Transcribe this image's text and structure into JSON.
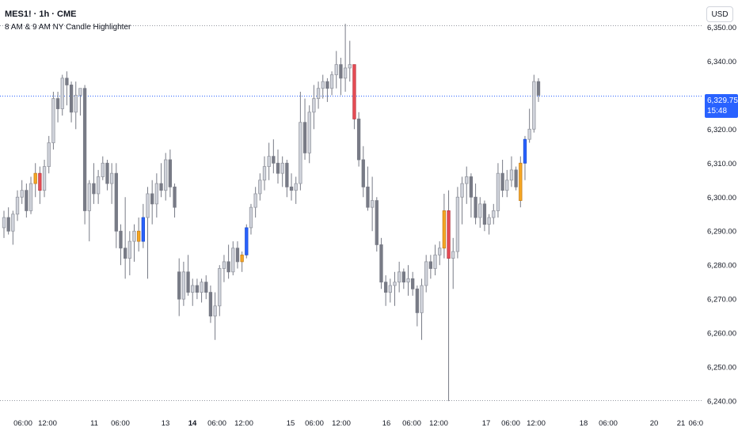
{
  "header": {
    "symbol": "MES1! · 1h · CME",
    "indicator": "8 AM & 9 AM NY Candle Highlighter",
    "currency_button": "USD"
  },
  "last_price": {
    "value": "6,329.75",
    "countdown": "15:48"
  },
  "price_axis": {
    "labels": [
      "6,350.00",
      "6,340.00",
      "6,320.00",
      "6,310.00",
      "6,300.00",
      "6,290.00",
      "6,280.00",
      "6,270.00",
      "6,260.00",
      "6,250.00",
      "6,240.00"
    ],
    "values": [
      6350,
      6340,
      6320,
      6310,
      6300,
      6290,
      6280,
      6270,
      6260,
      6250,
      6240
    ]
  },
  "time_axis": {
    "labels": [
      "06:00",
      "12:00",
      "11",
      "06:00",
      "13",
      "14",
      "06:00",
      "12:00",
      "15",
      "06:00",
      "12:00",
      "16",
      "06:00",
      "12:00",
      "17",
      "06:00",
      "12:00",
      "18",
      "06:00",
      "20",
      "21",
      "06:0"
    ],
    "bold": [
      false,
      false,
      false,
      false,
      false,
      true,
      false,
      false,
      false,
      false,
      false,
      false,
      false,
      false,
      false,
      false,
      false,
      false,
      false,
      false,
      false,
      false
    ]
  },
  "reference_lines": {
    "top_dotted": 6350.5,
    "bottom_dotted": 6240.2,
    "last_price_line": 6329.75
  },
  "colors": {
    "up_body": "#d1d4dc",
    "down_body": "#787b86",
    "wick": "#787b86",
    "highlight_8am": "#f5a623",
    "highlight_9am_down": "#e84c55",
    "highlight_blue": "#2962ff",
    "accent": "#2962ff"
  },
  "chart_data": {
    "type": "candlestick",
    "ylim": [
      6237,
      6358
    ],
    "candles": [
      {
        "o": 6291,
        "h": 6296,
        "l": 6288,
        "c": 6294
      },
      {
        "o": 6294,
        "h": 6297,
        "l": 6289,
        "c": 6290
      },
      {
        "o": 6290,
        "h": 6296,
        "l": 6286,
        "c": 6295
      },
      {
        "o": 6295,
        "h": 6302,
        "l": 6293,
        "c": 6300
      },
      {
        "o": 6300,
        "h": 6305,
        "l": 6298,
        "c": 6302
      },
      {
        "o": 6302,
        "h": 6304,
        "l": 6294,
        "c": 6296
      },
      {
        "o": 6296,
        "h": 6306,
        "l": 6295,
        "c": 6304
      },
      {
        "o": 6304,
        "h": 6310,
        "l": 6300,
        "c": 6307,
        "hl": "orange"
      },
      {
        "o": 6307,
        "h": 6309,
        "l": 6298,
        "c": 6302,
        "hl": "red"
      },
      {
        "o": 6302,
        "h": 6311,
        "l": 6300,
        "c": 6309
      },
      {
        "o": 6309,
        "h": 6318,
        "l": 6307,
        "c": 6316
      },
      {
        "o": 6316,
        "h": 6331,
        "l": 6314,
        "c": 6329
      },
      {
        "o": 6329,
        "h": 6331,
        "l": 6322,
        "c": 6326
      },
      {
        "o": 6326,
        "h": 6336,
        "l": 6324,
        "c": 6335
      },
      {
        "o": 6335,
        "h": 6337,
        "l": 6327,
        "c": 6333
      },
      {
        "o": 6333,
        "h": 6334,
        "l": 6322,
        "c": 6325
      },
      {
        "o": 6325,
        "h": 6334,
        "l": 6320,
        "c": 6330
      },
      {
        "o": 6330,
        "h": 6331,
        "l": 6324,
        "c": 6332
      },
      {
        "o": 6332,
        "h": 6333,
        "l": 6292,
        "c": 6296
      },
      {
        "o": 6296,
        "h": 6305,
        "l": 6287,
        "c": 6304
      },
      {
        "o": 6304,
        "h": 6310,
        "l": 6298,
        "c": 6301
      },
      {
        "o": 6301,
        "h": 6308,
        "l": 6298,
        "c": 6306
      },
      {
        "o": 6306,
        "h": 6312,
        "l": 6305,
        "c": 6310
      },
      {
        "o": 6310,
        "h": 6311,
        "l": 6302,
        "c": 6304
      },
      {
        "o": 6304,
        "h": 6310,
        "l": 6298,
        "c": 6307
      },
      {
        "o": 6307,
        "h": 6310,
        "l": 6285,
        "c": 6290
      },
      {
        "o": 6290,
        "h": 6292,
        "l": 6280,
        "c": 6285
      },
      {
        "o": 6285,
        "h": 6300,
        "l": 6276,
        "c": 6282
      },
      {
        "o": 6282,
        "h": 6290,
        "l": 6277,
        "c": 6287
      },
      {
        "o": 6287,
        "h": 6292,
        "l": 6281,
        "c": 6290
      },
      {
        "o": 6290,
        "h": 6294,
        "l": 6284,
        "c": 6287,
        "hl": "orange"
      },
      {
        "o": 6287,
        "h": 6298,
        "l": 6285,
        "c": 6294,
        "hl": "blue"
      },
      {
        "o": 6294,
        "h": 6303,
        "l": 6276,
        "c": 6301
      },
      {
        "o": 6301,
        "h": 6305,
        "l": 6292,
        "c": 6298
      },
      {
        "o": 6298,
        "h": 6307,
        "l": 6294,
        "c": 6304
      },
      {
        "o": 6304,
        "h": 6310,
        "l": 6300,
        "c": 6302
      },
      {
        "o": 6302,
        "h": 6313,
        "l": 6299,
        "c": 6311
      },
      {
        "o": 6311,
        "h": 6314,
        "l": 6300,
        "c": 6303
      },
      {
        "o": 6303,
        "h": 6304,
        "l": 6294,
        "c": 6297
      },
      {
        "o": 6278,
        "h": 6282,
        "l": 6265,
        "c": 6270
      },
      {
        "o": 6270,
        "h": 6281,
        "l": 6268,
        "c": 6278
      },
      {
        "o": 6278,
        "h": 6283,
        "l": 6271,
        "c": 6272
      },
      {
        "o": 6272,
        "h": 6276,
        "l": 6268,
        "c": 6274
      },
      {
        "o": 6274,
        "h": 6276,
        "l": 6270,
        "c": 6272
      },
      {
        "o": 6272,
        "h": 6276,
        "l": 6269,
        "c": 6275
      },
      {
        "o": 6275,
        "h": 6277,
        "l": 6270,
        "c": 6272
      },
      {
        "o": 6272,
        "h": 6274,
        "l": 6263,
        "c": 6265
      },
      {
        "o": 6265,
        "h": 6272,
        "l": 6258,
        "c": 6268
      },
      {
        "o": 6268,
        "h": 6280,
        "l": 6265,
        "c": 6279
      },
      {
        "o": 6279,
        "h": 6283,
        "l": 6275,
        "c": 6281
      },
      {
        "o": 6281,
        "h": 6286,
        "l": 6276,
        "c": 6278
      },
      {
        "o": 6278,
        "h": 6287,
        "l": 6277,
        "c": 6285
      },
      {
        "o": 6285,
        "h": 6287,
        "l": 6279,
        "c": 6281
      },
      {
        "o": 6281,
        "h": 6284,
        "l": 6278,
        "c": 6283,
        "hl": "orange"
      },
      {
        "o": 6283,
        "h": 6292,
        "l": 6282,
        "c": 6291,
        "hl": "blue"
      },
      {
        "o": 6291,
        "h": 6298,
        "l": 6289,
        "c": 6297
      },
      {
        "o": 6297,
        "h": 6303,
        "l": 6294,
        "c": 6301
      },
      {
        "o": 6301,
        "h": 6307,
        "l": 6299,
        "c": 6305
      },
      {
        "o": 6305,
        "h": 6312,
        "l": 6302,
        "c": 6309
      },
      {
        "o": 6309,
        "h": 6316,
        "l": 6305,
        "c": 6312
      },
      {
        "o": 6312,
        "h": 6317,
        "l": 6307,
        "c": 6310
      },
      {
        "o": 6310,
        "h": 6314,
        "l": 6304,
        "c": 6307
      },
      {
        "o": 6307,
        "h": 6312,
        "l": 6303,
        "c": 6310
      },
      {
        "o": 6310,
        "h": 6311,
        "l": 6300,
        "c": 6303
      },
      {
        "o": 6303,
        "h": 6307,
        "l": 6299,
        "c": 6302
      },
      {
        "o": 6302,
        "h": 6306,
        "l": 6298,
        "c": 6304
      },
      {
        "o": 6304,
        "h": 6331,
        "l": 6302,
        "c": 6322
      },
      {
        "o": 6322,
        "h": 6329,
        "l": 6311,
        "c": 6313
      },
      {
        "o": 6313,
        "h": 6327,
        "l": 6310,
        "c": 6325
      },
      {
        "o": 6325,
        "h": 6333,
        "l": 6320,
        "c": 6329
      },
      {
        "o": 6329,
        "h": 6334,
        "l": 6326,
        "c": 6332
      },
      {
        "o": 6332,
        "h": 6336,
        "l": 6329,
        "c": 6334
      },
      {
        "o": 6334,
        "h": 6335,
        "l": 6328,
        "c": 6332
      },
      {
        "o": 6332,
        "h": 6337,
        "l": 6330,
        "c": 6336
      },
      {
        "o": 6336,
        "h": 6343,
        "l": 6332,
        "c": 6339
      },
      {
        "o": 6339,
        "h": 6341,
        "l": 6330,
        "c": 6335
      },
      {
        "o": 6335,
        "h": 6351,
        "l": 6331,
        "c": 6338
      },
      {
        "o": 6338,
        "h": 6346,
        "l": 6334,
        "c": 6339
      },
      {
        "o": 6339,
        "h": 6339,
        "l": 6320,
        "c": 6323,
        "hl": "red"
      },
      {
        "o": 6323,
        "h": 6325,
        "l": 6309,
        "c": 6311
      },
      {
        "o": 6311,
        "h": 6315,
        "l": 6300,
        "c": 6303
      },
      {
        "o": 6303,
        "h": 6309,
        "l": 6296,
        "c": 6297
      },
      {
        "o": 6297,
        "h": 6306,
        "l": 6290,
        "c": 6299
      },
      {
        "o": 6299,
        "h": 6300,
        "l": 6284,
        "c": 6286
      },
      {
        "o": 6286,
        "h": 6288,
        "l": 6273,
        "c": 6275
      },
      {
        "o": 6275,
        "h": 6277,
        "l": 6268,
        "c": 6272
      },
      {
        "o": 6272,
        "h": 6276,
        "l": 6269,
        "c": 6274
      },
      {
        "o": 6274,
        "h": 6278,
        "l": 6268,
        "c": 6275
      },
      {
        "o": 6275,
        "h": 6281,
        "l": 6272,
        "c": 6278
      },
      {
        "o": 6278,
        "h": 6279,
        "l": 6273,
        "c": 6275
      },
      {
        "o": 6275,
        "h": 6280,
        "l": 6271,
        "c": 6276
      },
      {
        "o": 6276,
        "h": 6278,
        "l": 6271,
        "c": 6273
      },
      {
        "o": 6273,
        "h": 6274,
        "l": 6262,
        "c": 6266
      },
      {
        "o": 6266,
        "h": 6276,
        "l": 6258,
        "c": 6274
      },
      {
        "o": 6274,
        "h": 6283,
        "l": 6272,
        "c": 6281
      },
      {
        "o": 6281,
        "h": 6283,
        "l": 6276,
        "c": 6279
      },
      {
        "o": 6279,
        "h": 6286,
        "l": 6277,
        "c": 6283
      },
      {
        "o": 6283,
        "h": 6287,
        "l": 6280,
        "c": 6285
      },
      {
        "o": 6285,
        "h": 6301,
        "l": 6282,
        "c": 6296,
        "hl": "orange"
      },
      {
        "o": 6296,
        "h": 6302,
        "l": 6240,
        "c": 6282,
        "hl": "red"
      },
      {
        "o": 6282,
        "h": 6288,
        "l": 6273,
        "c": 6284
      },
      {
        "o": 6284,
        "h": 6303,
        "l": 6282,
        "c": 6300
      },
      {
        "o": 6300,
        "h": 6306,
        "l": 6292,
        "c": 6304
      },
      {
        "o": 6304,
        "h": 6309,
        "l": 6298,
        "c": 6306
      },
      {
        "o": 6306,
        "h": 6307,
        "l": 6294,
        "c": 6300
      },
      {
        "o": 6300,
        "h": 6304,
        "l": 6292,
        "c": 6294
      },
      {
        "o": 6294,
        "h": 6300,
        "l": 6291,
        "c": 6298
      },
      {
        "o": 6298,
        "h": 6299,
        "l": 6290,
        "c": 6292
      },
      {
        "o": 6292,
        "h": 6295,
        "l": 6289,
        "c": 6294
      },
      {
        "o": 6294,
        "h": 6298,
        "l": 6292,
        "c": 6296
      },
      {
        "o": 6296,
        "h": 6310,
        "l": 6294,
        "c": 6307
      },
      {
        "o": 6307,
        "h": 6311,
        "l": 6300,
        "c": 6302
      },
      {
        "o": 6302,
        "h": 6308,
        "l": 6300,
        "c": 6305
      },
      {
        "o": 6305,
        "h": 6312,
        "l": 6303,
        "c": 6308
      },
      {
        "o": 6308,
        "h": 6309,
        "l": 6302,
        "c": 6303
      },
      {
        "o": 6299,
        "h": 6312,
        "l": 6297,
        "c": 6310,
        "hl": "orange"
      },
      {
        "o": 6310,
        "h": 6318,
        "l": 6305,
        "c": 6317,
        "hl": "blue"
      },
      {
        "o": 6317,
        "h": 6326,
        "l": 6316,
        "c": 6320
      },
      {
        "o": 6320,
        "h": 6336,
        "l": 6319,
        "c": 6334
      },
      {
        "o": 6334,
        "h": 6335,
        "l": 6328,
        "c": 6330
      }
    ]
  }
}
